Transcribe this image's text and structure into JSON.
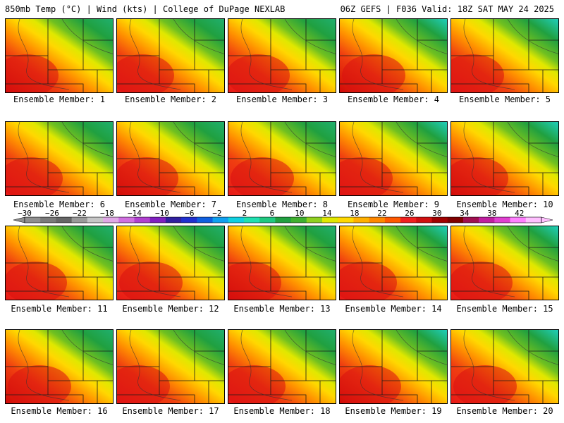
{
  "header": {
    "left": "850mb Temp (°C) | Wind (kts) | College of DuPage NEXLAB",
    "right": "06Z GEFS | F036 Valid: 18Z SAT MAY 24 2025"
  },
  "members": [
    "Ensemble Member: 1",
    "Ensemble Member: 2",
    "Ensemble Member: 3",
    "Ensemble Member: 4",
    "Ensemble Member: 5",
    "Ensemble Member: 6",
    "Ensemble Member: 7",
    "Ensemble Member: 8",
    "Ensemble Member: 9",
    "Ensemble Member: 10",
    "Ensemble Member: 11",
    "Ensemble Member: 12",
    "Ensemble Member: 13",
    "Ensemble Member: 14",
    "Ensemble Member: 15",
    "Ensemble Member: 16",
    "Ensemble Member: 17",
    "Ensemble Member: 18",
    "Ensemble Member: 19",
    "Ensemble Member: 20"
  ],
  "colorbar": {
    "labels": [
      "−30",
      "−26",
      "−22",
      "−18",
      "−14",
      "−10",
      "−6",
      "−2",
      "2",
      "6",
      "10",
      "14",
      "18",
      "22",
      "26",
      "30",
      "34",
      "38",
      "42"
    ],
    "colors": [
      "#8e8e8e",
      "#7a7a7a",
      "#666666",
      "#9a9a9a",
      "#c6c6c6",
      "#e0a8e6",
      "#d070e0",
      "#b040d0",
      "#8020c0",
      "#3020a0",
      "#2030d0",
      "#1060e0",
      "#10a0f0",
      "#10d0e0",
      "#20e0b0",
      "#20c880",
      "#20a040",
      "#40b030",
      "#90d020",
      "#e0e800",
      "#ffd800",
      "#ffb000",
      "#ff8800",
      "#ff5800",
      "#f02020",
      "#d01010",
      "#a00000",
      "#800000",
      "#a01050",
      "#c020a0",
      "#e040d0",
      "#ff80ff",
      "#ffc0ff"
    ]
  }
}
